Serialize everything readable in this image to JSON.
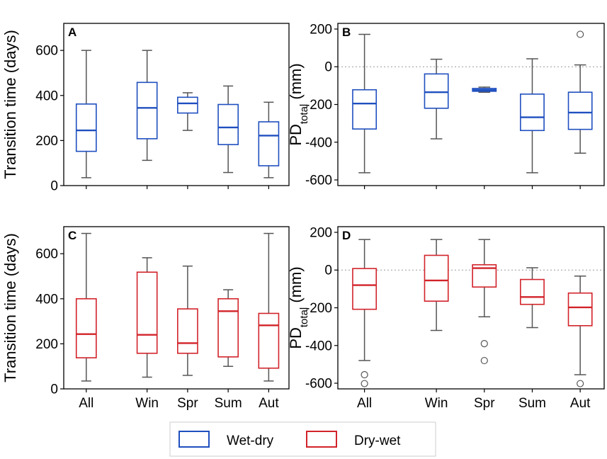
{
  "colors": {
    "wet_dry": "#1f4fbf",
    "dry_wet": "#d2232a",
    "whisker": "#555555",
    "frame": "#000000",
    "zero_line": "#999999",
    "flier": "#555555"
  },
  "legend": {
    "items": [
      {
        "label": "Wet-dry",
        "color": "#1f4fbf"
      },
      {
        "label": "Dry-wet",
        "color": "#d2232a"
      }
    ]
  },
  "chart_data": [
    {
      "panel": "A",
      "type": "box",
      "ylabel": "Transition time (days)",
      "categories": [
        "All",
        "Win",
        "Spr",
        "Sum",
        "Aut"
      ],
      "show_xticklabels": false,
      "ylim": [
        0,
        720
      ],
      "yticks": [
        0,
        200,
        400,
        600
      ],
      "zero_line": false,
      "series_color": "#1f4fbf",
      "boxes": [
        {
          "category": "All",
          "whislo": 35,
          "q1": 152,
          "med": 245,
          "q3": 362,
          "whishi": 600,
          "fliers": []
        },
        {
          "category": "Win",
          "whislo": 112,
          "q1": 208,
          "med": 345,
          "q3": 458,
          "whishi": 600,
          "fliers": []
        },
        {
          "category": "Spr",
          "whislo": 245,
          "q1": 322,
          "med": 365,
          "q3": 392,
          "whishi": 412,
          "fliers": []
        },
        {
          "category": "Sum",
          "whislo": 58,
          "q1": 182,
          "med": 258,
          "q3": 360,
          "whishi": 442,
          "fliers": []
        },
        {
          "category": "Aut",
          "whislo": 35,
          "q1": 88,
          "med": 222,
          "q3": 283,
          "whishi": 370,
          "fliers": []
        }
      ]
    },
    {
      "panel": "B",
      "type": "box",
      "ylabel": "PDtotal (mm)",
      "ylabel_main": "PD",
      "ylabel_sub": "total",
      "ylabel_unit": " (mm)",
      "categories": [
        "All",
        "Win",
        "Spr",
        "Sum",
        "Aut"
      ],
      "show_xticklabels": false,
      "ylim": [
        -630,
        230
      ],
      "yticks": [
        -600,
        -400,
        -200,
        0,
        200
      ],
      "zero_line": true,
      "series_color": "#1f4fbf",
      "boxes": [
        {
          "category": "All",
          "whislo": -562,
          "q1": -330,
          "med": -195,
          "q3": -122,
          "whishi": 172,
          "fliers": []
        },
        {
          "category": "Win",
          "whislo": -382,
          "q1": -220,
          "med": -135,
          "q3": -38,
          "whishi": 40,
          "fliers": []
        },
        {
          "category": "Spr",
          "whislo": -135,
          "q1": -130,
          "med": -123,
          "q3": -115,
          "whishi": -108,
          "fliers": []
        },
        {
          "category": "Sum",
          "whislo": -562,
          "q1": -338,
          "med": -268,
          "q3": -145,
          "whishi": 42,
          "fliers": []
        },
        {
          "category": "Aut",
          "whislo": -458,
          "q1": -332,
          "med": -243,
          "q3": -135,
          "whishi": 10,
          "fliers": [
            172
          ]
        }
      ]
    },
    {
      "panel": "C",
      "type": "box",
      "ylabel": "Transition time (days)",
      "categories": [
        "All",
        "Win",
        "Spr",
        "Sum",
        "Aut"
      ],
      "show_xticklabels": true,
      "ylim": [
        0,
        720
      ],
      "yticks": [
        0,
        200,
        400,
        600
      ],
      "zero_line": false,
      "series_color": "#d2232a",
      "boxes": [
        {
          "category": "All",
          "whislo": 35,
          "q1": 138,
          "med": 243,
          "q3": 400,
          "whishi": 690,
          "fliers": []
        },
        {
          "category": "Win",
          "whislo": 52,
          "q1": 158,
          "med": 240,
          "q3": 518,
          "whishi": 582,
          "fliers": []
        },
        {
          "category": "Spr",
          "whislo": 60,
          "q1": 158,
          "med": 203,
          "q3": 355,
          "whishi": 545,
          "fliers": []
        },
        {
          "category": "Sum",
          "whislo": 100,
          "q1": 142,
          "med": 345,
          "q3": 400,
          "whishi": 440,
          "fliers": []
        },
        {
          "category": "Aut",
          "whislo": 35,
          "q1": 92,
          "med": 282,
          "q3": 335,
          "whishi": 690,
          "fliers": []
        }
      ]
    },
    {
      "panel": "D",
      "type": "box",
      "ylabel": "PDtotal (mm)",
      "ylabel_main": "PD",
      "ylabel_sub": "total",
      "ylabel_unit": " (mm)",
      "categories": [
        "All",
        "Win",
        "Spr",
        "Sum",
        "Aut"
      ],
      "show_xticklabels": true,
      "ylim": [
        -630,
        230
      ],
      "yticks": [
        -600,
        -400,
        -200,
        0,
        200
      ],
      "zero_line": true,
      "series_color": "#d2232a",
      "boxes": [
        {
          "category": "All",
          "whislo": -480,
          "q1": -208,
          "med": -80,
          "q3": 8,
          "whishi": 162,
          "fliers": [
            -555,
            -602
          ]
        },
        {
          "category": "Win",
          "whislo": -320,
          "q1": -165,
          "med": -55,
          "q3": 78,
          "whishi": 162,
          "fliers": []
        },
        {
          "category": "Spr",
          "whislo": -248,
          "q1": -90,
          "med": 10,
          "q3": 28,
          "whishi": 162,
          "fliers": [
            -390,
            -480
          ]
        },
        {
          "category": "Sum",
          "whislo": -305,
          "q1": -182,
          "med": -143,
          "q3": -50,
          "whishi": 12,
          "fliers": []
        },
        {
          "category": "Aut",
          "whislo": -555,
          "q1": -295,
          "med": -198,
          "q3": -122,
          "whishi": -32,
          "fliers": [
            -602
          ]
        }
      ]
    }
  ]
}
